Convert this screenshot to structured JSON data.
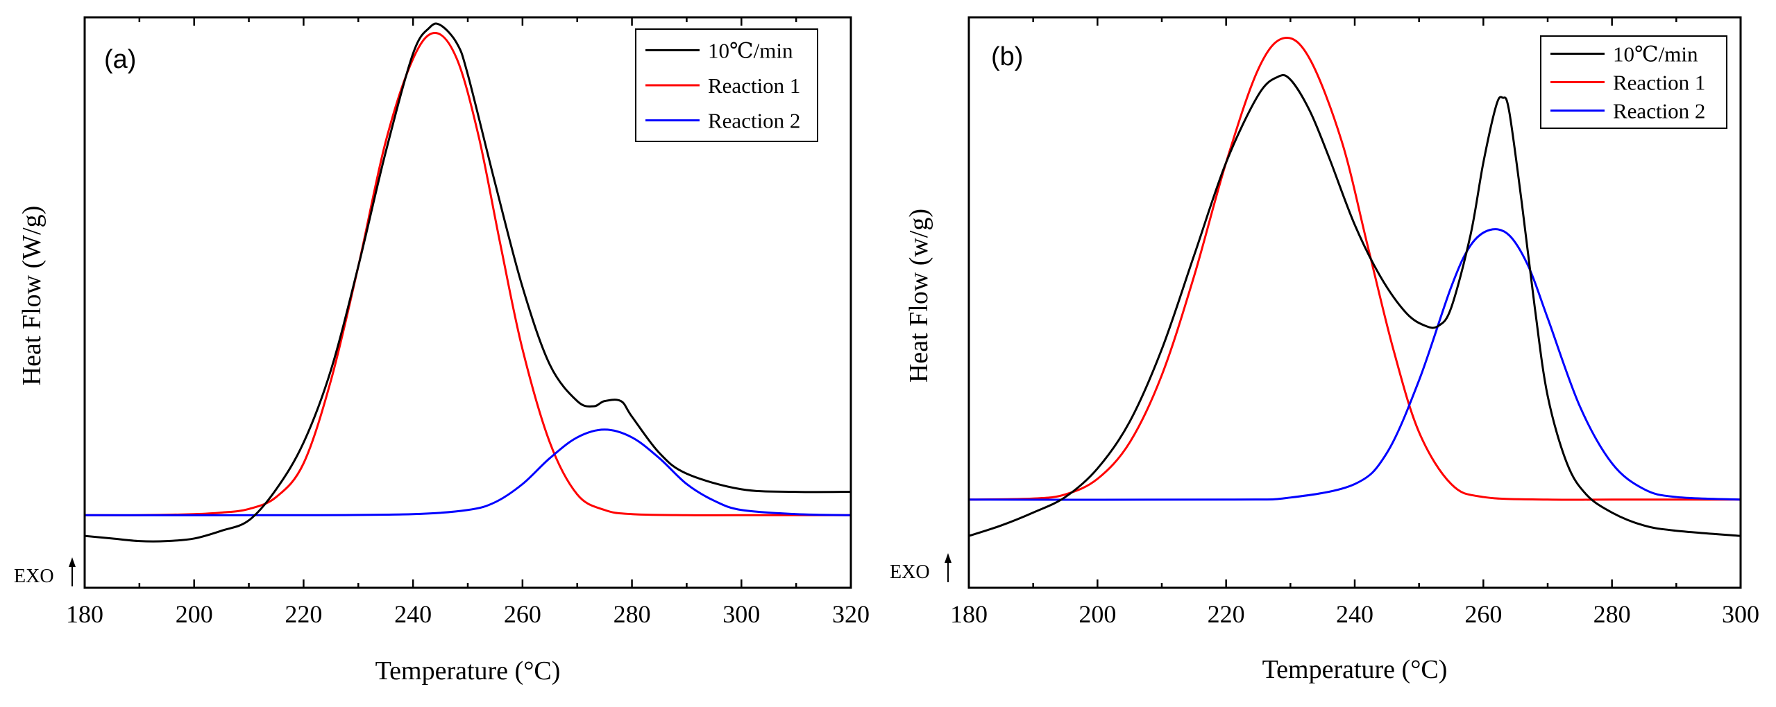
{
  "chart_data": [
    {
      "panel": "(a)",
      "type": "line",
      "xlabel": "Temperature (°C)",
      "ylabel": "Heat Flow (W/g)",
      "xlim": [
        180,
        320
      ],
      "ylim": [
        -0.1,
        1.0
      ],
      "xticks": [
        180,
        200,
        220,
        240,
        260,
        280,
        300,
        320
      ],
      "xtick_labels": [
        "180",
        "200",
        "220",
        "240",
        "260",
        "280",
        "300",
        "320"
      ],
      "exo_label": "EXO",
      "legend_position": "top-right",
      "series": [
        {
          "name": "10℃/min",
          "color": "#000000",
          "x": [
            180,
            185,
            190,
            195,
            200,
            205,
            210,
            215,
            220,
            225,
            230,
            235,
            240,
            243,
            245,
            248,
            250,
            255,
            260,
            265,
            270,
            273,
            275,
            278,
            280,
            285,
            290,
            300,
            310,
            320
          ],
          "y": [
            0.0,
            -0.005,
            -0.01,
            -0.01,
            -0.005,
            0.01,
            0.03,
            0.09,
            0.18,
            0.32,
            0.52,
            0.74,
            0.93,
            0.98,
            0.985,
            0.95,
            0.89,
            0.68,
            0.48,
            0.33,
            0.26,
            0.25,
            0.26,
            0.26,
            0.23,
            0.16,
            0.12,
            0.09,
            0.085,
            0.085
          ]
        },
        {
          "name": "Reaction 1",
          "color": "#ff0000",
          "x": [
            180,
            190,
            200,
            205,
            210,
            215,
            220,
            225,
            230,
            235,
            240,
            244,
            248,
            252,
            256,
            260,
            265,
            270,
            275,
            280,
            290,
            300,
            320
          ],
          "y": [
            0.04,
            0.04,
            0.042,
            0.045,
            0.052,
            0.075,
            0.14,
            0.3,
            0.52,
            0.76,
            0.92,
            0.97,
            0.92,
            0.77,
            0.56,
            0.36,
            0.18,
            0.08,
            0.05,
            0.042,
            0.04,
            0.04,
            0.04
          ]
        },
        {
          "name": "Reaction 2",
          "color": "#0000ff",
          "x": [
            180,
            220,
            240,
            250,
            255,
            260,
            265,
            270,
            275,
            280,
            285,
            290,
            295,
            300,
            310,
            320
          ],
          "y": [
            0.04,
            0.04,
            0.042,
            0.05,
            0.065,
            0.1,
            0.15,
            0.19,
            0.205,
            0.19,
            0.15,
            0.1,
            0.068,
            0.05,
            0.042,
            0.04
          ]
        }
      ]
    },
    {
      "panel": "(b)",
      "type": "line",
      "xlabel": "Temperature (°C)",
      "ylabel": "Heat Flow (w/g)",
      "xlim": [
        180,
        300
      ],
      "ylim": [
        -0.1,
        1.0
      ],
      "xticks": [
        180,
        200,
        220,
        240,
        260,
        280,
        300
      ],
      "xtick_labels": [
        "180",
        "200",
        "220",
        "240",
        "260",
        "280",
        "300"
      ],
      "exo_label": "EXO",
      "legend_position": "top-right",
      "series": [
        {
          "name": "10℃/min",
          "color": "#000000",
          "x": [
            180,
            185,
            190,
            195,
            200,
            205,
            210,
            215,
            220,
            225,
            228,
            230,
            233,
            236,
            240,
            244,
            248,
            251,
            253,
            255,
            258,
            260,
            262,
            263,
            264,
            266,
            268,
            270,
            273,
            276,
            280,
            285,
            290,
            300
          ],
          "y": [
            0.0,
            0.02,
            0.045,
            0.075,
            0.13,
            0.22,
            0.36,
            0.54,
            0.72,
            0.85,
            0.885,
            0.88,
            0.82,
            0.73,
            0.6,
            0.5,
            0.43,
            0.405,
            0.405,
            0.44,
            0.58,
            0.72,
            0.83,
            0.845,
            0.82,
            0.64,
            0.44,
            0.27,
            0.14,
            0.08,
            0.045,
            0.02,
            0.01,
            0.0
          ]
        },
        {
          "name": "Reaction 1",
          "color": "#ff0000",
          "x": [
            180,
            190,
            195,
            200,
            205,
            210,
            215,
            220,
            225,
            229,
            233,
            238,
            242,
            246,
            250,
            255,
            260,
            270,
            280,
            300
          ],
          "y": [
            0.07,
            0.072,
            0.08,
            0.11,
            0.18,
            0.31,
            0.5,
            0.72,
            0.9,
            0.96,
            0.92,
            0.76,
            0.56,
            0.36,
            0.2,
            0.1,
            0.075,
            0.07,
            0.07,
            0.07
          ]
        },
        {
          "name": "Reaction 2",
          "color": "#0000ff",
          "x": [
            180,
            220,
            230,
            240,
            245,
            250,
            255,
            258,
            261,
            264,
            267,
            270,
            275,
            280,
            285,
            290,
            300
          ],
          "y": [
            0.07,
            0.07,
            0.074,
            0.1,
            0.16,
            0.3,
            0.48,
            0.56,
            0.59,
            0.58,
            0.52,
            0.42,
            0.25,
            0.14,
            0.09,
            0.075,
            0.07
          ]
        }
      ]
    }
  ]
}
